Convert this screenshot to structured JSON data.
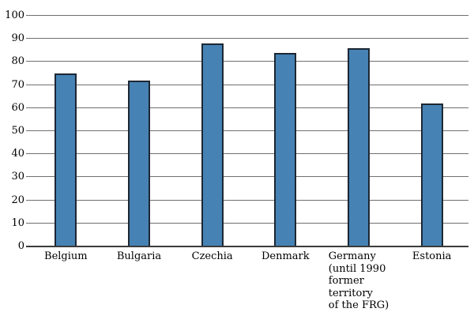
{
  "page": {
    "background_color": "#ffffff"
  },
  "chart_data": {
    "type": "bar",
    "title": "",
    "xlabel": "",
    "ylabel": "",
    "categories": [
      "Belgium",
      "Bulgaria",
      "Czechia",
      "Denmark",
      "Germany (until 1990 former territory of the FRG)",
      "Estonia"
    ],
    "category_label_lines": [
      [
        "Belgium"
      ],
      [
        "Bulgaria"
      ],
      [
        "Czechia"
      ],
      [
        "Denmark"
      ],
      [
        "Germany",
        "(until 1990",
        "former",
        "territory",
        "of the FRG)"
      ],
      [
        "Estonia"
      ]
    ],
    "values": [
      74,
      71,
      87,
      83,
      85,
      61
    ],
    "ylim": [
      0,
      100
    ],
    "ytick_step": 10,
    "ytick_labels": [
      "0",
      "10",
      "20",
      "30",
      "40",
      "50",
      "60",
      "70",
      "80",
      "90",
      "100"
    ],
    "grid": true,
    "legend_position": "none",
    "colors": {
      "bar_fill": "#4682B4",
      "bar_border": "#1d2733",
      "gridline": "#6f6f6f",
      "axis_line": "#3b3b3b",
      "text": "#000000"
    }
  }
}
